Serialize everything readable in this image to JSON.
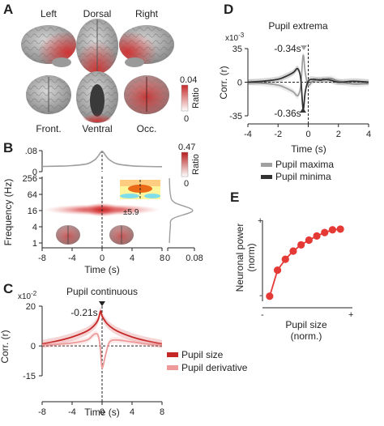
{
  "panelA": {
    "letter": "A",
    "view_labels": [
      "Left",
      "Dorsal",
      "Right",
      "Front.",
      "Ventral",
      "Occ."
    ],
    "colorbar": {
      "max": "0.04",
      "min": "0",
      "label": "Ratio",
      "colors": [
        "#ffffff",
        "#c62828"
      ]
    }
  },
  "panelB": {
    "letter": "B",
    "top_ticks": [
      ".08",
      "0"
    ],
    "ylabel": "Frequency (Hz)",
    "xlabel": "Time (s)",
    "yticks": [
      "256",
      "64",
      "16",
      "4",
      "1"
    ],
    "xticks": [
      "-8",
      "-4",
      "0",
      "4",
      "8"
    ],
    "side_ticks": [
      "0",
      "0.08"
    ],
    "inset_label": "±5.9",
    "colorbar": {
      "max": "0.47",
      "min": "0",
      "label": "Ratio",
      "colors": [
        "#ffffff",
        "#b71c1c"
      ]
    }
  },
  "panelC": {
    "letter": "C",
    "title": "Pupil continuous",
    "scale": "x10",
    "scale_exp": "-2",
    "ylabel": "Corr. (r)",
    "xlabel": "Time (s)",
    "peak_label": "-0.21s",
    "yticks": [
      "20",
      "0",
      "-15"
    ],
    "legend": [
      "Pupil size",
      "Pupil derivative"
    ]
  },
  "panelD": {
    "letter": "D",
    "title": "Pupil extrema",
    "scale": "x10",
    "scale_exp": "-3",
    "ylabel": "Corr. (r)",
    "xlabel": "Time (s)",
    "max_label": "-0.34s",
    "min_label": "-0.36s",
    "yticks": [
      "35",
      "0",
      "-35"
    ],
    "legend": [
      "Pupil maxima",
      "Pupil minima"
    ]
  },
  "panelE": {
    "letter": "E",
    "ylabel_1": "Neuronal power",
    "ylabel_2": "(norm)",
    "xlabel_1": "Pupil size",
    "xlabel_2": "(norm.)",
    "plus": "+",
    "minus": "-"
  },
  "chart_data": [
    {
      "type": "line",
      "panel": "B-top",
      "x": [
        -8,
        -6,
        -4,
        -2,
        -1,
        -0.5,
        0,
        0.5,
        1,
        2,
        4,
        6,
        8
      ],
      "series": [
        {
          "values": [
            0.02,
            0.021,
            0.023,
            0.03,
            0.045,
            0.06,
            0.078,
            0.06,
            0.045,
            0.03,
            0.022,
            0.02,
            0.019
          ]
        }
      ],
      "xlabel": "",
      "ylabel": "",
      "xlim": [
        -8,
        8
      ],
      "ylim": [
        0,
        0.08
      ]
    },
    {
      "type": "heatmap",
      "panel": "B",
      "xlabel": "Time (s)",
      "ylabel": "Frequency (Hz)",
      "xlim": [
        -8,
        8
      ],
      "ylim": [
        0.7,
        256
      ],
      "peak": {
        "time": 0,
        "frequency": 16
      },
      "side_profile": {
        "frequency": [
          1,
          4,
          8,
          16,
          32,
          64,
          256
        ],
        "values": [
          0.005,
          0.008,
          0.015,
          0.075,
          0.02,
          0.008,
          0.005
        ]
      },
      "colorbar": [
        0,
        0.47
      ]
    },
    {
      "type": "line",
      "panel": "C",
      "title": "Pupil continuous",
      "x": [
        -8,
        -6,
        -4,
        -2,
        -1,
        -0.5,
        -0.21,
        0,
        0.5,
        1,
        2,
        4,
        6,
        8
      ],
      "series": [
        {
          "name": "Pupil size",
          "color": "#c62828",
          "values": [
            1,
            2.5,
            4.5,
            7.5,
            10.5,
            13.5,
            17.5,
            15,
            12,
            10,
            7.5,
            4.5,
            2.5,
            1
          ]
        },
        {
          "name": "Pupil derivative",
          "color": "#ef9a9a",
          "values": [
            0.5,
            0.8,
            1.5,
            3,
            6,
            5,
            -2,
            -11,
            -4,
            2,
            3,
            2,
            1,
            0.5
          ]
        }
      ],
      "xlabel": "Time (s)",
      "ylabel": "Corr. (r)",
      "xlim": [
        -8,
        8
      ],
      "ylim": [
        -15,
        20
      ],
      "scale": "x10^-2",
      "peak": -0.21
    },
    {
      "type": "line",
      "panel": "D",
      "title": "Pupil extrema",
      "x": [
        -4,
        -3,
        -2,
        -1.5,
        -1,
        -0.7,
        -0.5,
        -0.34,
        -0.2,
        0,
        0.3,
        0.8,
        1,
        1.5,
        2,
        3,
        4
      ],
      "series": [
        {
          "name": "Pupil maxima",
          "color": "#a0a0a0",
          "values": [
            0,
            -1,
            -3,
            -6,
            -10,
            -14,
            -4,
            28,
            10,
            -3,
            1,
            3,
            2,
            4,
            1,
            -2,
            -1
          ]
        },
        {
          "name": "Pupil minima",
          "color": "#333333",
          "values": [
            0,
            1,
            3,
            6,
            10,
            14,
            4,
            -28,
            -10,
            1,
            3,
            2,
            3,
            2,
            0,
            1,
            0
          ]
        }
      ],
      "xlabel": "Time (s)",
      "ylabel": "Corr. (r)",
      "xlim": [
        -4,
        4
      ],
      "ylim": [
        -35,
        35
      ],
      "scale": "x10^-3",
      "maxima_peak": -0.34,
      "minima_peak": -0.36
    },
    {
      "type": "line",
      "panel": "E",
      "x": [
        1,
        2,
        3,
        4,
        5,
        6,
        7,
        8,
        9,
        10
      ],
      "series": [
        {
          "color": "#e53935",
          "values": [
            0.0,
            0.38,
            0.54,
            0.66,
            0.75,
            0.82,
            0.88,
            0.93,
            0.97,
            0.98
          ]
        }
      ],
      "xlabel": "Pupil size (norm.)",
      "ylabel": "Neuronal power (norm)",
      "xlim": [
        0.5,
        10.5
      ],
      "ylim": [
        -0.05,
        1.05
      ]
    }
  ]
}
